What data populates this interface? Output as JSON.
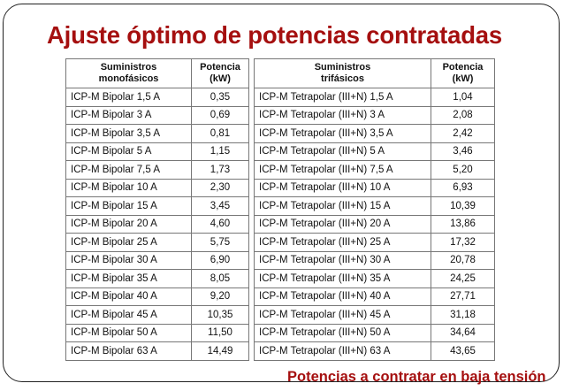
{
  "title": "Ajuste óptimo de potencias contratadas",
  "footer": "Potencias a contratar en baja tensión",
  "tables": [
    {
      "headers": [
        [
          "Suministros",
          "monofásicos"
        ],
        [
          "Potencia",
          "(kW)"
        ]
      ],
      "rows": [
        [
          "ICP-M Bipolar 1,5 A",
          "0,35"
        ],
        [
          "ICP-M Bipolar 3 A",
          "0,69"
        ],
        [
          "ICP-M Bipolar 3,5 A",
          "0,81"
        ],
        [
          "ICP-M Bipolar 5 A",
          "1,15"
        ],
        [
          "ICP-M Bipolar 7,5 A",
          "1,73"
        ],
        [
          "ICP-M Bipolar 10 A",
          "2,30"
        ],
        [
          "ICP-M Bipolar 15 A",
          "3,45"
        ],
        [
          "ICP-M Bipolar 20 A",
          "4,60"
        ],
        [
          "ICP-M Bipolar 25 A",
          "5,75"
        ],
        [
          "ICP-M Bipolar 30 A",
          "6,90"
        ],
        [
          "ICP-M Bipolar 35 A",
          "8,05"
        ],
        [
          "ICP-M Bipolar 40 A",
          "9,20"
        ],
        [
          "ICP-M Bipolar 45 A",
          "10,35"
        ],
        [
          "ICP-M Bipolar 50 A",
          "11,50"
        ],
        [
          "ICP-M Bipolar 63 A",
          "14,49"
        ]
      ]
    },
    {
      "headers": [
        [
          "Suministros",
          "trifásicos"
        ],
        [
          "Potencia",
          "(kW)"
        ]
      ],
      "rows": [
        [
          "ICP-M Tetrapolar (III+N) 1,5 A",
          "1,04"
        ],
        [
          "ICP-M Tetrapolar (III+N) 3 A",
          "2,08"
        ],
        [
          "ICP-M Tetrapolar (III+N) 3,5 A",
          "2,42"
        ],
        [
          "ICP-M Tetrapolar (III+N) 5 A",
          "3,46"
        ],
        [
          "ICP-M Tetrapolar (III+N) 7,5 A",
          "5,20"
        ],
        [
          "ICP-M Tetrapolar (III+N) 10 A",
          "6,93"
        ],
        [
          "ICP-M Tetrapolar (III+N) 15 A",
          "10,39"
        ],
        [
          "ICP-M Tetrapolar (III+N) 20 A",
          "13,86"
        ],
        [
          "ICP-M Tetrapolar (III+N) 25 A",
          "17,32"
        ],
        [
          "ICP-M Tetrapolar (III+N) 30 A",
          "20,78"
        ],
        [
          "ICP-M Tetrapolar (III+N) 35 A",
          "24,25"
        ],
        [
          "ICP-M Tetrapolar (III+N) 40 A",
          "27,71"
        ],
        [
          "ICP-M Tetrapolar (III+N) 45 A",
          "31,18"
        ],
        [
          "ICP-M Tetrapolar (III+N) 50 A",
          "34,64"
        ],
        [
          "ICP-M Tetrapolar (III+N) 63 A",
          "43,65"
        ]
      ]
    }
  ]
}
